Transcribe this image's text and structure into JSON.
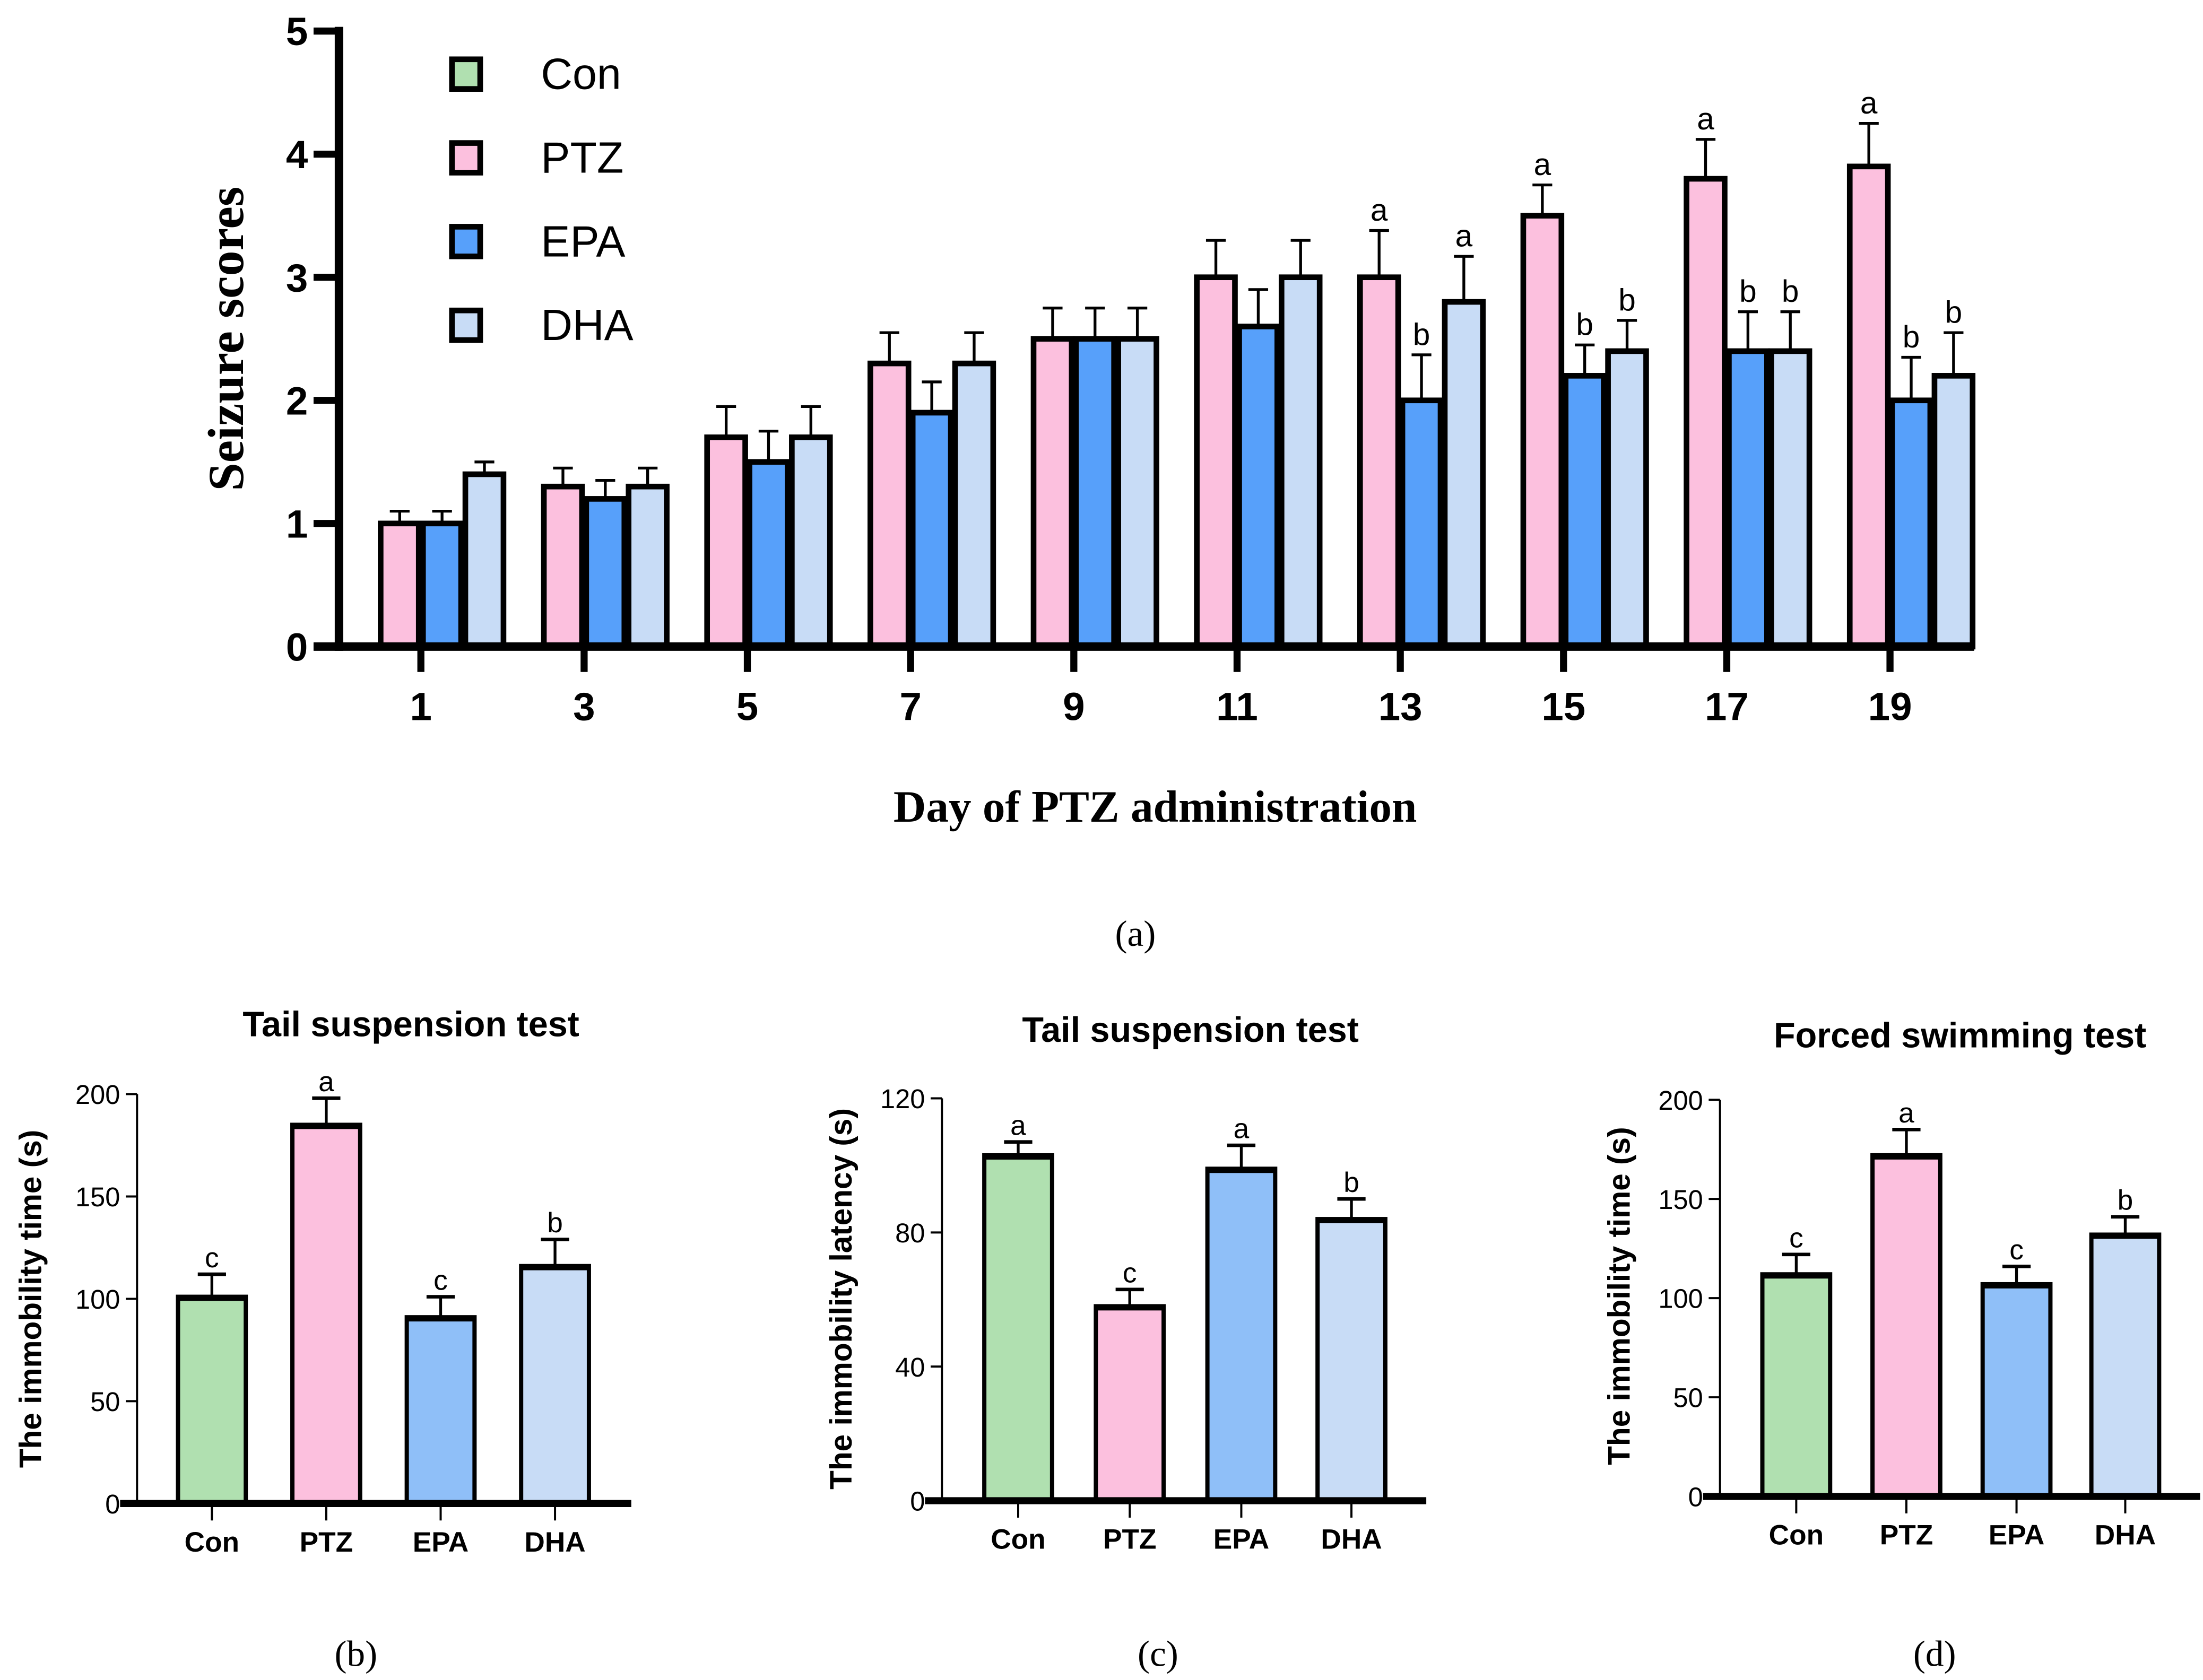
{
  "colors": {
    "Con": "#b0e0b0",
    "PTZ": "#fcc0de",
    "EPA_a": "#57a0fa",
    "EPA": "#8fbff8",
    "DHA": "#c8dcf6",
    "outline": "#000000"
  },
  "chart_data": [
    {
      "id": "a",
      "type": "bar",
      "caption": "(a)",
      "title": "",
      "xlabel": "Day of PTZ administration",
      "ylabel": "Seizure scores",
      "ylim": [
        0,
        5
      ],
      "yticks": [
        "0",
        "1",
        "2",
        "3",
        "4",
        "5"
      ],
      "categories": [
        "1",
        "3",
        "5",
        "7",
        "9",
        "11",
        "13",
        "15",
        "17",
        "19"
      ],
      "legend": {
        "placement": "top-left",
        "entries": [
          "Con",
          "PTZ",
          "EPA",
          "DHA"
        ]
      },
      "grid": false,
      "series": [
        {
          "name": "Con",
          "values": [
            0,
            0,
            0,
            0,
            0,
            0,
            0,
            0,
            0,
            0
          ],
          "errors": [
            0,
            0,
            0,
            0,
            0,
            0,
            0,
            0,
            0,
            0
          ],
          "letters": [
            "",
            "",
            "",
            "",
            "",
            "",
            "",
            "",
            "",
            ""
          ]
        },
        {
          "name": "PTZ",
          "values": [
            1.0,
            1.3,
            1.7,
            2.3,
            2.5,
            3.0,
            3.0,
            3.5,
            3.8,
            3.9
          ],
          "errors": [
            0.1,
            0.15,
            0.25,
            0.25,
            0.25,
            0.3,
            0.38,
            0.25,
            0.32,
            0.35
          ],
          "letters": [
            "",
            "",
            "",
            "",
            "",
            "",
            "a",
            "a",
            "a",
            "a"
          ]
        },
        {
          "name": "EPA",
          "values": [
            1.0,
            1.2,
            1.5,
            1.9,
            2.5,
            2.6,
            2.0,
            2.2,
            2.4,
            2.0
          ],
          "errors": [
            0.1,
            0.15,
            0.25,
            0.25,
            0.25,
            0.3,
            0.37,
            0.25,
            0.32,
            0.35
          ],
          "letters": [
            "",
            "",
            "",
            "",
            "",
            "",
            "b",
            "b",
            "b",
            "b"
          ]
        },
        {
          "name": "DHA",
          "values": [
            1.4,
            1.3,
            1.7,
            2.3,
            2.5,
            3.0,
            2.8,
            2.4,
            2.4,
            2.2
          ],
          "errors": [
            0.1,
            0.15,
            0.25,
            0.25,
            0.25,
            0.3,
            0.37,
            0.25,
            0.32,
            0.35
          ],
          "letters": [
            "",
            "",
            "",
            "",
            "",
            "",
            "a",
            "b",
            "b",
            "b"
          ]
        }
      ]
    },
    {
      "id": "b",
      "type": "bar",
      "caption": "(b)",
      "title": "Tail suspension test",
      "xlabel": "",
      "ylabel": "The immobility time (s)",
      "ylim": [
        0,
        200
      ],
      "yticks": [
        "0",
        "50",
        "100",
        "150",
        "200"
      ],
      "categories": [
        "Con",
        "PTZ",
        "EPA",
        "DHA"
      ],
      "values": [
        101,
        185,
        91,
        116
      ],
      "errors": [
        11,
        13,
        10,
        13
      ],
      "letters": [
        "c",
        "a",
        "c",
        "b"
      ],
      "grid": false
    },
    {
      "id": "c",
      "type": "bar",
      "caption": "(c)",
      "title": "Tail suspension test",
      "xlabel": "",
      "ylabel": "The immobility latency (s)",
      "ylim": [
        0,
        120
      ],
      "yticks": [
        "0",
        "40",
        "80",
        "120"
      ],
      "categories": [
        "Con",
        "PTZ",
        "EPA",
        "DHA"
      ],
      "values": [
        103,
        58,
        99,
        84
      ],
      "errors": [
        4,
        5,
        7,
        6
      ],
      "letters": [
        "a",
        "c",
        "a",
        "b"
      ],
      "grid": false
    },
    {
      "id": "d",
      "type": "bar",
      "caption": "(d)",
      "title": "Forced swimming test",
      "xlabel": "",
      "ylabel": "The immobility time (s)",
      "ylim": [
        0,
        200
      ],
      "yticks": [
        "0",
        "50",
        "100",
        "150",
        "200"
      ],
      "categories": [
        "Con",
        "PTZ",
        "EPA",
        "DHA"
      ],
      "values": [
        112,
        172,
        107,
        132
      ],
      "errors": [
        10,
        13,
        9,
        9
      ],
      "letters": [
        "c",
        "a",
        "c",
        "b"
      ],
      "grid": false
    }
  ]
}
